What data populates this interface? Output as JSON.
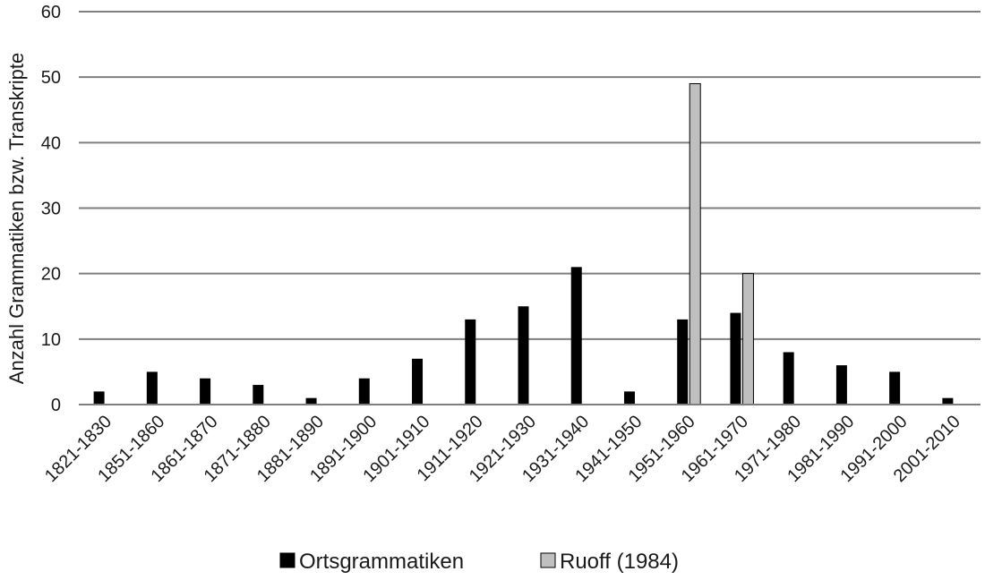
{
  "chart_data": {
    "type": "bar",
    "title": "",
    "xlabel": "",
    "ylabel": "Anzahl Grammatiken bzw. Transkripte",
    "ylim": [
      0,
      60
    ],
    "yticks": [
      0,
      10,
      20,
      30,
      40,
      50,
      60
    ],
    "grid": true,
    "legend_position": "bottom",
    "categories": [
      "1821-1830",
      "1851-1860",
      "1861-1870",
      "1871-1880",
      "1881-1890",
      "1891-1900",
      "1901-1910",
      "1911-1920",
      "1921-1930",
      "1931-1940",
      "1941-1950",
      "1951-1960",
      "1961-1970",
      "1971-1980",
      "1981-1990",
      "1991-2000",
      "2001-2010"
    ],
    "series": [
      {
        "name": "Ortsgrammatiken",
        "color": "#000000",
        "values": [
          2,
          5,
          4,
          3,
          1,
          4,
          7,
          13,
          15,
          21,
          2,
          13,
          14,
          8,
          6,
          5,
          1
        ]
      },
      {
        "name": "Ruoff (1984)",
        "color": "#bfbfbf",
        "values": [
          0,
          0,
          0,
          0,
          0,
          0,
          0,
          0,
          0,
          0,
          0,
          49,
          20,
          0,
          0,
          0,
          0
        ]
      }
    ]
  }
}
